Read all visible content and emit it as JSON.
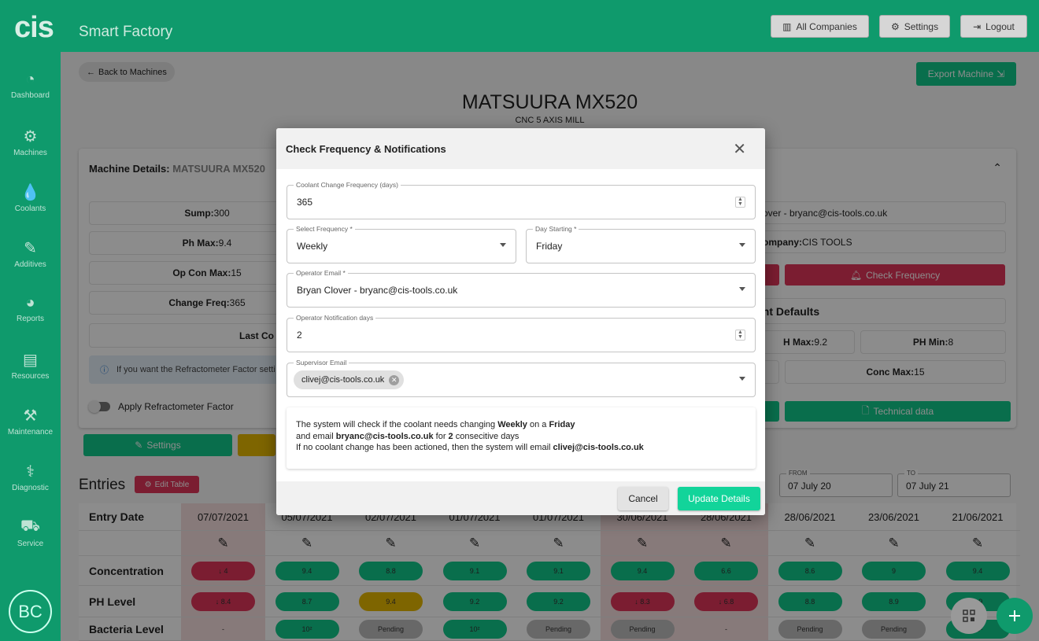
{
  "header": {
    "logo": "cis",
    "app_name": "Smart Factory",
    "buttons": [
      {
        "label": "All Companies",
        "icon": "chart-icon"
      },
      {
        "label": "Settings",
        "icon": "gear-icon"
      },
      {
        "label": "Logout",
        "icon": "logout-icon"
      }
    ]
  },
  "sidebar": {
    "items": [
      {
        "label": "Dashboard",
        "icon": "◔"
      },
      {
        "label": "Machines",
        "icon": "⚙"
      },
      {
        "label": "Coolants",
        "icon": "💧"
      },
      {
        "label": "Additives",
        "icon": "✎"
      },
      {
        "label": "Reports",
        "icon": "◕"
      },
      {
        "label": "Resources",
        "icon": "▤"
      },
      {
        "label": "Maintenance",
        "icon": "⚒"
      },
      {
        "label": "Diagnostic",
        "icon": "⚕"
      },
      {
        "label": "Service",
        "icon": "⛟"
      }
    ],
    "avatar": "BC"
  },
  "page": {
    "back_label": "Back to Machines",
    "export_label": "Export Machine",
    "title": "MATSUURA MX520",
    "subtitle": "CNC 5 AXIS MILL"
  },
  "details": {
    "heading_label": "Machine Details:",
    "heading_value": "MATSUURA MX520",
    "left": [
      {
        "k": "Sump:",
        "v": " 300"
      },
      {
        "k": "Ph Max:",
        "v": " 9.4"
      },
      {
        "k": "Op Con Max:",
        "v": " 15"
      },
      {
        "k": "Change Freq:",
        "v": " 365"
      }
    ],
    "last_coolant": "Last Co",
    "info": "If you want the Refractometer Factor setti",
    "toggle_label": "Apply Refractometer Factor",
    "settings_button": "Settings",
    "operator": "over - bryanc@cis-tools.co.uk",
    "company_label": "ompany:",
    "company_value": " CIS TOOLS",
    "check_frequency": "Check Frequency",
    "defaults_title": "ant Defaults",
    "ph_max_label": "H Max:",
    "ph_max_value": " 9.2",
    "ph_min_label": "PH Min:",
    "ph_min_value": " 8",
    "conc_max_label": "Conc Max:",
    "conc_max_value": " 15",
    "technical_data": "Technical data"
  },
  "entries": {
    "title": "Entries",
    "edit_table": "Edit Table",
    "from_label": "FROM",
    "from_value": "07 July 20",
    "to_label": "TO",
    "to_value": "07 July 21",
    "row_labels": [
      "Entry Date",
      "",
      "Concentration",
      "PH Level",
      "Bacteria Level"
    ],
    "columns": [
      {
        "date": "07/07/2021",
        "flag": true,
        "conc": {
          "v": "↓ 4",
          "s": "red"
        },
        "ph": {
          "v": "↓ 8.4",
          "s": "red"
        },
        "bac": {
          "v": "-",
          "s": "none"
        }
      },
      {
        "date": "05/07/2021",
        "flag": false,
        "conc": {
          "v": "9.4",
          "s": "green"
        },
        "ph": {
          "v": "8.7",
          "s": "green"
        },
        "bac": {
          "v": "10²",
          "s": "green"
        }
      },
      {
        "date": "02/07/2021",
        "flag": false,
        "conc": {
          "v": "8.8",
          "s": "green"
        },
        "ph": {
          "v": "9.4",
          "s": "yellow"
        },
        "bac": {
          "v": "Pending",
          "s": "grey"
        }
      },
      {
        "date": "01/07/2021",
        "flag": false,
        "conc": {
          "v": "9.1",
          "s": "green"
        },
        "ph": {
          "v": "9.2",
          "s": "green"
        },
        "bac": {
          "v": "10²",
          "s": "green"
        }
      },
      {
        "date": "01/07/2021",
        "flag": false,
        "conc": {
          "v": "9.1",
          "s": "green"
        },
        "ph": {
          "v": "9.2",
          "s": "green"
        },
        "bac": {
          "v": "Pending",
          "s": "grey"
        }
      },
      {
        "date": "30/06/2021",
        "flag": true,
        "conc": {
          "v": "9.4",
          "s": "green"
        },
        "ph": {
          "v": "↓ 8.3",
          "s": "red"
        },
        "bac": {
          "v": "Pending",
          "s": "grey"
        }
      },
      {
        "date": "28/06/2021",
        "flag": true,
        "conc": {
          "v": "6.6",
          "s": "green"
        },
        "ph": {
          "v": "↓ 6.8",
          "s": "red"
        },
        "bac": {
          "v": "-",
          "s": "none"
        }
      },
      {
        "date": "28/06/2021",
        "flag": false,
        "conc": {
          "v": "8.6",
          "s": "green"
        },
        "ph": {
          "v": "8.8",
          "s": "green"
        },
        "bac": {
          "v": "Pending",
          "s": "grey"
        }
      },
      {
        "date": "23/06/2021",
        "flag": false,
        "conc": {
          "v": "9",
          "s": "green"
        },
        "ph": {
          "v": "8.9",
          "s": "green"
        },
        "bac": {
          "v": "Pending",
          "s": "grey"
        }
      },
      {
        "date": "21/06/2021",
        "flag": false,
        "conc": {
          "v": "9.4",
          "s": "green"
        },
        "ph": {
          "v": "8.9",
          "s": "green"
        },
        "bac": {
          "v": "10²",
          "s": "green"
        }
      }
    ]
  },
  "modal": {
    "title": "Check Frequency & Notifications",
    "coolant_freq_label": "Coolant Change Frequency (days)",
    "coolant_freq_value": "365",
    "select_freq_label": "Select Frequency *",
    "select_freq_value": "Weekly",
    "day_label": "Day Starting *",
    "day_value": "Friday",
    "operator_label": "Operator Email *",
    "operator_value": "Bryan Clover - bryanc@cis-tools.co.uk",
    "notif_label": "Operator Notification days",
    "notif_value": "2",
    "supervisor_label": "Supervisor Email",
    "supervisor_chip": "clivej@cis-tools.co.uk",
    "summary": {
      "a": "The system will check if the coolant needs changing ",
      "b": "Weekly",
      "c": " on a ",
      "d": "Friday",
      "e": "and email ",
      "f": "bryanc@cis-tools.co.uk",
      "g": " for ",
      "h": "2",
      "i": " consecitive days",
      "j": "If no coolant change has been actioned, then the system will email ",
      "k": "clivej@cis-tools.co.uk"
    },
    "cancel": "Cancel",
    "update": "Update Details"
  },
  "colors": {
    "brand": "#0f9a6c",
    "green": "#12c88a",
    "red": "#e0365a",
    "yellow": "#e6b800",
    "grey": "#bdbdbd",
    "update": "#12d49a"
  }
}
